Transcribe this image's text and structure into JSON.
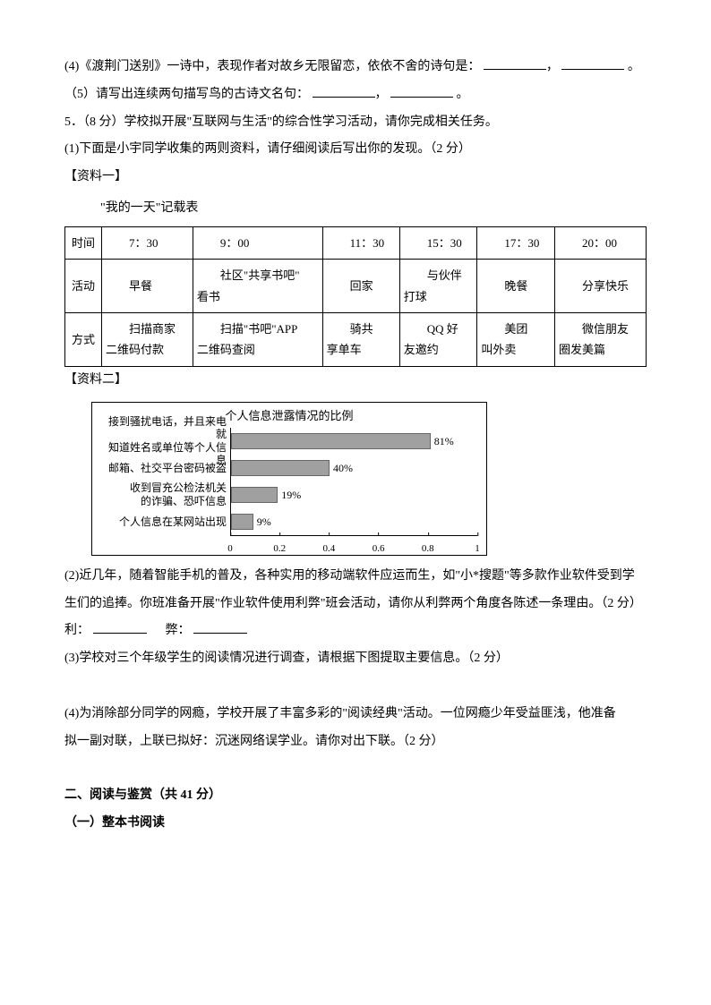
{
  "lines": {
    "q4": "(4)《渡荆门送别》一诗中，表现作者对故乡无限留恋，依依不舍的诗句是：",
    "q4_tail": "。",
    "q5pre": "（5）请写出连续两句描写鸟的古诗文名句：",
    "q5tail": "。",
    "q5main": "5．（8 分）学校拟开展\"互联网与生活\"的综合性学习活动，请你完成相关任务。",
    "q5_1": "(1)下面是小宇同学收集的两则资料，请仔细阅读后写出你的发现。（2 分）",
    "mat1": "【资料一】",
    "table_title": "\"我的一天\"记载表",
    "mat2": "【资料二】",
    "q5_2a": "(2)近几年，随着智能手机的普及，各种实用的移动端软件应运而生，如\"小*搜题\"等多款作业软件受到学",
    "q5_2b": "生们的追捧。你班准备开展\"作业软件使用利弊\"班会活动，请你从利弊两个角度各陈述一条理由。（2 分）",
    "li": "利：",
    "bi": "弊：",
    "q5_3": "(3)学校对三个年级学生的阅读情况进行调查，请根据下图提取主要信息。（2 分）",
    "q5_4a": "(4)为消除部分同学的网瘾，学校开展了丰富多彩的\"阅读经典\"活动。一位网瘾少年受益匪浅，他准备",
    "q5_4b": "拟一副对联，上联已拟好：沉迷网络误学业。请你对出下联。（2 分）",
    "sec2": "二、阅读与鉴赏（共 41 分）",
    "sec2_1": "（一）整本书阅读"
  },
  "table": {
    "headers": [
      "时间",
      "活动",
      "方式"
    ],
    "cols": [
      {
        "time": "7：30",
        "act": "早餐",
        "way": "扫描商家\n二维码付款"
      },
      {
        "time": "9：00",
        "act": "社区\"共享书吧\"\n看书",
        "way": "扫描\"书吧\"APP\n二维码查阅"
      },
      {
        "time": "11：30",
        "act": "回家",
        "way": "骑共\n享单车"
      },
      {
        "time": "15：30",
        "act": "与伙伴\n打球",
        "way": "QQ 好\n友邀约"
      },
      {
        "time": "17：30",
        "act": "晚餐",
        "way": "美团\n叫外卖"
      },
      {
        "time": "20：00",
        "act": "分享快乐",
        "way": "微信朋友\n圈发美篇"
      }
    ]
  },
  "chart": {
    "title": "个人信息泄露情况的比例",
    "bars": [
      {
        "label": "接到骚扰电话，并且来电就\n知道姓名或单位等个人信息",
        "value": 0.81,
        "text": "81%"
      },
      {
        "label": "邮箱、社交平台密码被盗",
        "value": 0.4,
        "text": "40%"
      },
      {
        "label": "收到冒充公检法机关\n的诈骗、恐吓信息",
        "value": 0.19,
        "text": "19%"
      },
      {
        "label": "个人信息在某网站出现",
        "value": 0.09,
        "text": "9%"
      }
    ],
    "xmax": 1.0,
    "ticks": [
      0,
      0.2,
      0.4,
      0.6,
      0.8,
      1
    ],
    "bar_color": "#a0a0a0",
    "border_color": "#000000",
    "font_size_label": 12
  }
}
